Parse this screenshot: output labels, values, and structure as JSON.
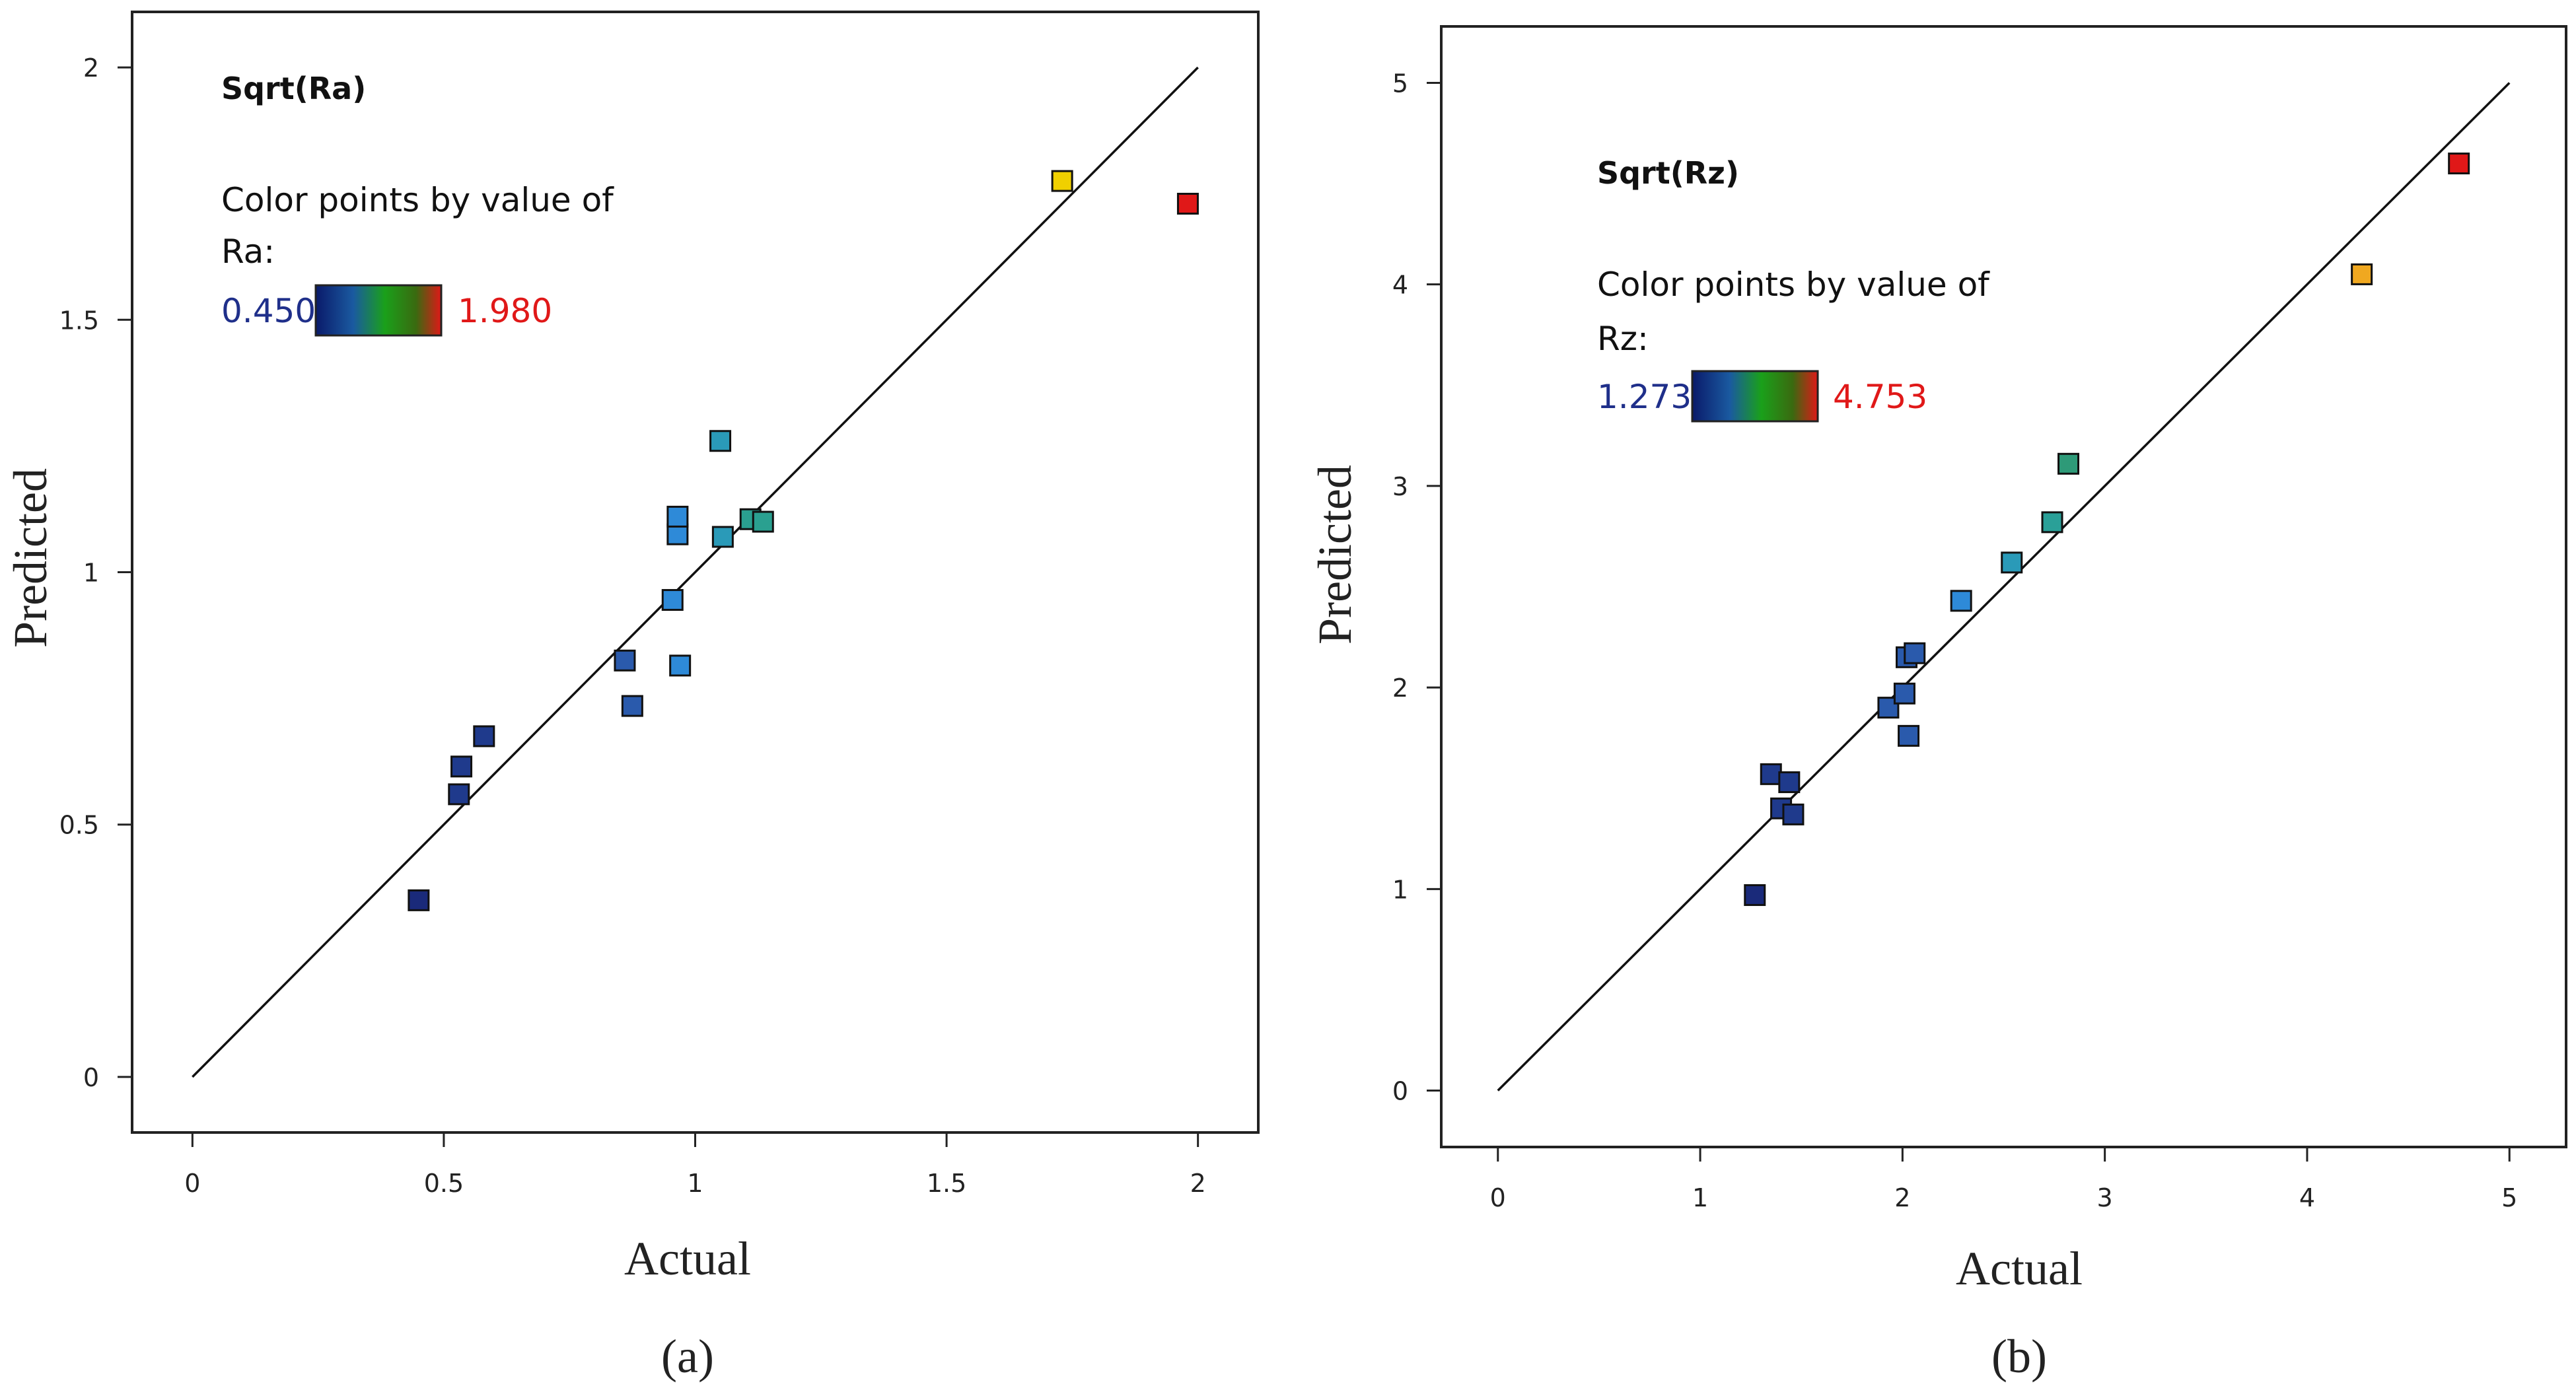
{
  "chart_data": [
    {
      "type": "scatter",
      "panel": "(a)",
      "response_title": "Sqrt(Ra)",
      "legend_caption_line1": "Color points by value of",
      "legend_caption_line2": "Ra:",
      "legend_min_label": "0.450",
      "legend_max_label": "1.980",
      "color_min": 0.45,
      "color_max": 1.98,
      "xlabel": "Actual",
      "ylabel": "Predicted",
      "xlim": [
        -0.12,
        2.12
      ],
      "ylim": [
        -0.11,
        2.11
      ],
      "xticks": [
        0,
        0.5,
        1,
        1.5,
        2
      ],
      "xtick_labels": [
        "0",
        "0.5",
        "1",
        "1.5",
        "2"
      ],
      "yticks": [
        0,
        0.5,
        1,
        1.5,
        2
      ],
      "ytick_labels": [
        "0",
        "0.5",
        "1",
        "1.5",
        "2"
      ],
      "reference_line": [
        [
          0,
          0
        ],
        [
          2,
          2
        ]
      ],
      "points": [
        {
          "x": 0.45,
          "y": 0.35,
          "color": "#1a2a7a"
        },
        {
          "x": 0.53,
          "y": 0.56,
          "color": "#1f3a8c"
        },
        {
          "x": 0.535,
          "y": 0.615,
          "color": "#1f3a8c"
        },
        {
          "x": 0.58,
          "y": 0.675,
          "color": "#1f3a8c"
        },
        {
          "x": 0.86,
          "y": 0.825,
          "color": "#2a5aac"
        },
        {
          "x": 0.875,
          "y": 0.735,
          "color": "#2a5aac"
        },
        {
          "x": 0.955,
          "y": 0.945,
          "color": "#2e8ad8"
        },
        {
          "x": 0.965,
          "y": 1.075,
          "color": "#2e8ad8"
        },
        {
          "x": 0.965,
          "y": 1.11,
          "color": "#2e8ad8"
        },
        {
          "x": 0.97,
          "y": 0.815,
          "color": "#2e8ad8"
        },
        {
          "x": 1.05,
          "y": 1.26,
          "color": "#2a9ab8"
        },
        {
          "x": 1.055,
          "y": 1.07,
          "color": "#2a9ab8"
        },
        {
          "x": 1.11,
          "y": 1.105,
          "color": "#2aa090"
        },
        {
          "x": 1.135,
          "y": 1.1,
          "color": "#2aa090"
        },
        {
          "x": 1.73,
          "y": 1.775,
          "color": "#f0d000"
        },
        {
          "x": 1.98,
          "y": 1.73,
          "color": "#e01818"
        }
      ]
    },
    {
      "type": "scatter",
      "panel": "(b)",
      "response_title": "Sqrt(Rz)",
      "legend_caption_line1": "Color points by value of",
      "legend_caption_line2": "Rz:",
      "legend_min_label": "1.273",
      "legend_max_label": "4.753",
      "color_min": 1.273,
      "color_max": 4.753,
      "xlabel": "Actual",
      "ylabel": "Predicted",
      "xlim": [
        -0.28,
        5.28
      ],
      "ylim": [
        -0.28,
        5.28
      ],
      "xticks": [
        0,
        1,
        2,
        3,
        4,
        5
      ],
      "xtick_labels": [
        "0",
        "1",
        "2",
        "3",
        "4",
        "5"
      ],
      "yticks": [
        0,
        1,
        2,
        3,
        4,
        5
      ],
      "ytick_labels": [
        "0",
        "1",
        "2",
        "3",
        "4",
        "5"
      ],
      "reference_line": [
        [
          0,
          0
        ],
        [
          5,
          5
        ]
      ],
      "points": [
        {
          "x": 1.27,
          "y": 0.97,
          "color": "#1a2a7a"
        },
        {
          "x": 1.35,
          "y": 1.57,
          "color": "#1f3a8c"
        },
        {
          "x": 1.4,
          "y": 1.4,
          "color": "#1f3a8c"
        },
        {
          "x": 1.44,
          "y": 1.53,
          "color": "#1f3a8c"
        },
        {
          "x": 1.46,
          "y": 1.37,
          "color": "#1f3a8c"
        },
        {
          "x": 1.93,
          "y": 1.9,
          "color": "#2a5aac"
        },
        {
          "x": 2.01,
          "y": 1.97,
          "color": "#2a5aac"
        },
        {
          "x": 2.02,
          "y": 2.15,
          "color": "#2a5aac"
        },
        {
          "x": 2.03,
          "y": 1.76,
          "color": "#2a5aac"
        },
        {
          "x": 2.06,
          "y": 2.17,
          "color": "#2a5aac"
        },
        {
          "x": 2.29,
          "y": 2.43,
          "color": "#2e8ad8"
        },
        {
          "x": 2.54,
          "y": 2.62,
          "color": "#2a9ab8"
        },
        {
          "x": 2.74,
          "y": 2.82,
          "color": "#2aa098"
        },
        {
          "x": 2.82,
          "y": 3.11,
          "color": "#2e9a78"
        },
        {
          "x": 4.27,
          "y": 4.05,
          "color": "#f0a820"
        },
        {
          "x": 4.75,
          "y": 4.6,
          "color": "#e01818"
        }
      ]
    }
  ]
}
